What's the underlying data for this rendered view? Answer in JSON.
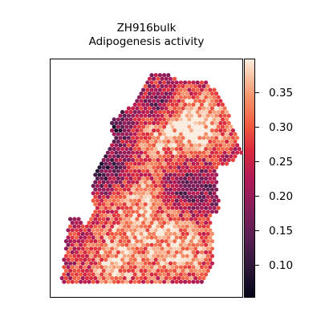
{
  "chart_data": {
    "type": "heatmap",
    "title": "ZH916bulk",
    "subtitle": "Adipogenesis activity",
    "colorbar": {
      "ticks": [
        0.1,
        0.15,
        0.2,
        0.25,
        0.3,
        0.35
      ],
      "tick_labels": [
        "0.10",
        "0.15",
        "0.20",
        "0.25",
        "0.30",
        "0.35"
      ],
      "range": [
        0.05,
        0.395
      ],
      "colormap": "rocket"
    },
    "grid": false,
    "axes_visible": false
  }
}
